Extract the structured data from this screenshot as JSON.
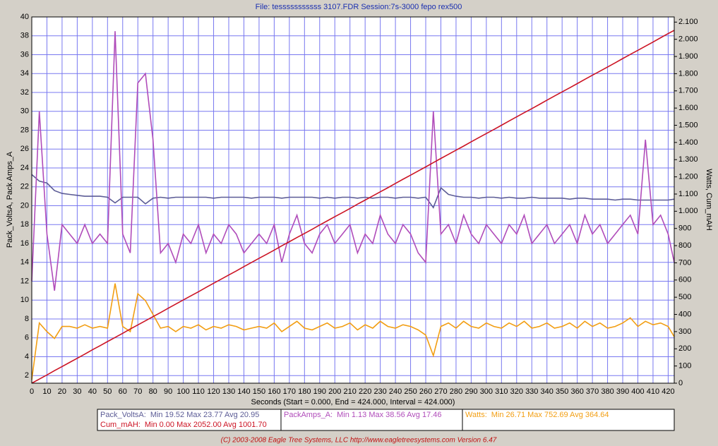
{
  "chart_data": {
    "type": "line",
    "title": "File: tesssssssssss 3107.FDR   Session:7s-3000 fepo rex500",
    "x_label": "Seconds (Start = 0.000, End = 424.000, Interval = 424.000)",
    "y_label": "Pack_VoltsA, Pack Amps_A",
    "y2_label": "Watts, Cum_mAH",
    "footer": "(C) 2003-2008 Eagle Tree Systems, LLC      http://www.eagletreesystems.com      Version 6.47",
    "grid": true,
    "xlim": [
      0,
      424
    ],
    "xticks": [
      0,
      10,
      20,
      30,
      40,
      50,
      60,
      70,
      80,
      90,
      100,
      110,
      120,
      130,
      140,
      150,
      160,
      170,
      180,
      190,
      200,
      210,
      220,
      230,
      240,
      250,
      260,
      270,
      280,
      290,
      300,
      310,
      320,
      330,
      340,
      350,
      360,
      370,
      380,
      390,
      400,
      410,
      420
    ],
    "ylim": [
      1.2,
      40
    ],
    "yticks": [
      2,
      4,
      6,
      8,
      10,
      12,
      14,
      16,
      18,
      20,
      22,
      24,
      26,
      28,
      30,
      32,
      34,
      36,
      38,
      40
    ],
    "y2lim": [
      0,
      2130
    ],
    "y2ticks": [
      0,
      100,
      200,
      300,
      400,
      500,
      600,
      700,
      800,
      900,
      {
        "value": 1000,
        "label": "1.000"
      },
      {
        "value": 1100,
        "label": "1.100"
      },
      {
        "value": 1200,
        "label": "1.200"
      },
      {
        "value": 1300,
        "label": "1.300"
      },
      {
        "value": 1400,
        "label": "1.400"
      },
      {
        "value": 1500,
        "label": "1.500"
      },
      {
        "value": 1600,
        "label": "1.600"
      },
      {
        "value": 1700,
        "label": "1.700"
      },
      {
        "value": 1800,
        "label": "1.800"
      },
      {
        "value": 1900,
        "label": "1.900"
      },
      {
        "value": 2000,
        "label": "2.000"
      },
      {
        "value": 2100,
        "label": "2.100"
      }
    ],
    "x": [
      0,
      5,
      10,
      15,
      20,
      25,
      30,
      35,
      40,
      45,
      50,
      55,
      60,
      65,
      70,
      75,
      80,
      85,
      90,
      95,
      100,
      105,
      110,
      115,
      120,
      125,
      130,
      135,
      140,
      145,
      150,
      155,
      160,
      165,
      170,
      175,
      180,
      185,
      190,
      195,
      200,
      205,
      210,
      215,
      220,
      225,
      230,
      235,
      240,
      245,
      250,
      255,
      260,
      265,
      270,
      275,
      280,
      285,
      290,
      295,
      300,
      305,
      310,
      315,
      320,
      325,
      330,
      335,
      340,
      345,
      350,
      355,
      360,
      365,
      370,
      375,
      380,
      385,
      390,
      395,
      400,
      405,
      410,
      415,
      420,
      424
    ],
    "series": [
      {
        "name": "Pack_VoltsA:",
        "summary": "Min 19.52   Max 23.77   Avg 20.95",
        "color": "#5c5c96",
        "values": [
          23.3,
          22.6,
          22.4,
          21.6,
          21.3,
          21.2,
          21.1,
          21.0,
          21.0,
          21.0,
          20.9,
          20.3,
          20.9,
          20.9,
          20.9,
          20.2,
          20.8,
          20.9,
          20.8,
          20.9,
          20.9,
          20.9,
          20.9,
          20.9,
          20.8,
          20.9,
          20.9,
          20.9,
          20.9,
          20.8,
          20.9,
          20.9,
          20.9,
          20.8,
          20.9,
          20.9,
          20.9,
          20.9,
          20.8,
          20.9,
          20.8,
          20.9,
          20.9,
          20.8,
          20.9,
          20.8,
          20.9,
          20.9,
          20.8,
          20.9,
          20.9,
          20.8,
          20.9,
          19.8,
          21.9,
          21.2,
          21.0,
          20.9,
          20.9,
          20.8,
          20.9,
          20.9,
          20.8,
          20.9,
          20.8,
          20.8,
          20.9,
          20.8,
          20.8,
          20.8,
          20.8,
          20.7,
          20.8,
          20.8,
          20.7,
          20.7,
          20.7,
          20.6,
          20.7,
          20.7,
          20.6,
          20.6,
          20.6,
          20.6,
          20.6,
          20.7
        ]
      },
      {
        "name": "PackAmps_A:",
        "summary": "Min 1.13   Max 38.56   Avg 17.46",
        "color": "#b04cba",
        "values": [
          12,
          30,
          17,
          11,
          18,
          17,
          16,
          18,
          16,
          17,
          16,
          38.5,
          17,
          15,
          33,
          34,
          27,
          15,
          16,
          14,
          17,
          16,
          18,
          15,
          17,
          16,
          18,
          17,
          15,
          16,
          17,
          16,
          18,
          14,
          17,
          19,
          16,
          15,
          17,
          18,
          16,
          17,
          18,
          15,
          17,
          16,
          19,
          17,
          16,
          18,
          17,
          15,
          14,
          30,
          17,
          18,
          16,
          19,
          17,
          16,
          18,
          17,
          16,
          18,
          17,
          19,
          16,
          17,
          18,
          16,
          17,
          18,
          16,
          19,
          17,
          18,
          16,
          17,
          18,
          19,
          17,
          27,
          18,
          19,
          17,
          14
        ]
      },
      {
        "name": "Watts:",
        "summary": "Min 26.71   Max 752.69   Avg 364.64",
        "color": "#f29e12",
        "axis": "y2",
        "values": [
          20,
          350,
          300,
          260,
          330,
          330,
          320,
          340,
          320,
          330,
          320,
          580,
          330,
          300,
          520,
          480,
          400,
          320,
          330,
          300,
          330,
          320,
          340,
          310,
          330,
          320,
          340,
          330,
          310,
          320,
          330,
          320,
          350,
          300,
          330,
          360,
          320,
          310,
          330,
          350,
          320,
          330,
          350,
          310,
          340,
          320,
          360,
          330,
          320,
          340,
          330,
          310,
          280,
          160,
          330,
          350,
          320,
          360,
          330,
          320,
          350,
          330,
          320,
          350,
          330,
          360,
          320,
          330,
          350,
          320,
          330,
          350,
          320,
          360,
          330,
          350,
          320,
          330,
          350,
          380,
          330,
          360,
          340,
          350,
          330,
          270
        ]
      },
      {
        "name": "Cum_mAH:",
        "summary": "Min 0.00   Max 2052.00   Avg 1001.70",
        "color": "#cc1424",
        "axis": "y2",
        "values": [
          0,
          24,
          48,
          73,
          97,
          121,
          145,
          169,
          194,
          218,
          242,
          266,
          290,
          315,
          339,
          363,
          387,
          411,
          436,
          460,
          484,
          508,
          532,
          557,
          581,
          605,
          629,
          653,
          678,
          702,
          726,
          750,
          774,
          799,
          823,
          847,
          871,
          895,
          920,
          944,
          968,
          992,
          1016,
          1041,
          1065,
          1089,
          1113,
          1137,
          1162,
          1186,
          1210,
          1234,
          1258,
          1283,
          1307,
          1331,
          1355,
          1379,
          1404,
          1428,
          1452,
          1476,
          1500,
          1525,
          1549,
          1573,
          1597,
          1621,
          1646,
          1670,
          1694,
          1718,
          1742,
          1767,
          1791,
          1815,
          1839,
          1863,
          1888,
          1912,
          1936,
          1960,
          1984,
          2009,
          2033,
          2052
        ]
      }
    ]
  }
}
